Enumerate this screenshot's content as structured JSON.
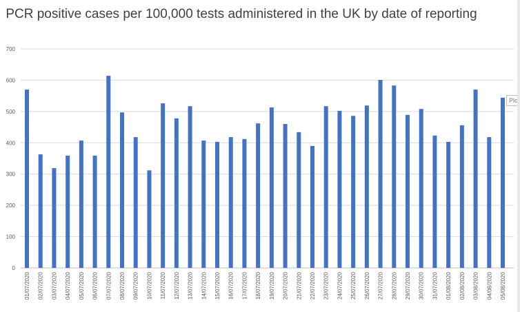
{
  "chart_data": {
    "type": "bar",
    "title": "PCR positive cases per 100,000 tests administered in the UK by date of reporting",
    "xlabel": "",
    "ylabel": "",
    "ylim": [
      0,
      700
    ],
    "yticks": [
      0,
      100,
      200,
      300,
      400,
      500,
      600,
      700
    ],
    "grid": true,
    "bar_color": "#4472C4",
    "categories": [
      "01/07/2020",
      "02/07/2020",
      "03/07/2020",
      "04/07/2020",
      "05/07/2020",
      "06/07/2020",
      "07/07/2020",
      "08/07/2020",
      "09/07/2020",
      "10/07/2020",
      "11/07/2020",
      "12/07/2020",
      "13/07/2020",
      "14/07/2020",
      "15/07/2020",
      "16/07/2020",
      "17/07/2020",
      "18/07/2020",
      "19/07/2020",
      "20/07/2020",
      "21/07/2020",
      "22/07/2020",
      "23/07/2020",
      "24/07/2020",
      "25/07/2020",
      "26/07/2020",
      "27/07/2020",
      "28/07/2020",
      "29/07/2020",
      "30/07/2020",
      "31/07/2020",
      "01/08/2020",
      "02/08/2020",
      "03/08/2020",
      "04/08/2020",
      "05/08/2020"
    ],
    "values": [
      570,
      363,
      319,
      359,
      407,
      359,
      614,
      497,
      418,
      312,
      526,
      478,
      517,
      407,
      403,
      418,
      412,
      462,
      513,
      460,
      434,
      390,
      517,
      502,
      486,
      519,
      601,
      583,
      489,
      508,
      423,
      403,
      456,
      570,
      418,
      544
    ]
  },
  "tooltip": "Plo"
}
